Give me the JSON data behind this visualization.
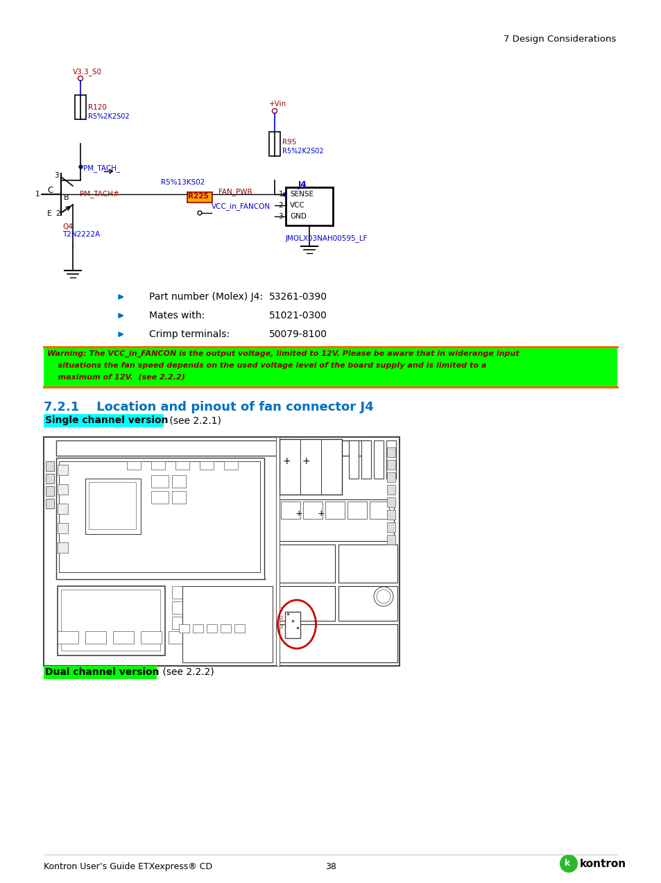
{
  "page_header": "7 Design Considerations",
  "section_title": "7.2.1    Location and pinout of fan connector J4",
  "section_title_color": "#0070C0",
  "single_channel_label": "Single channel version",
  "single_channel_highlight": "#00FFFF",
  "single_channel_suffix": " (see 2.2.1)",
  "dual_channel_label": "Dual channel version",
  "dual_channel_highlight": "#00FF00",
  "dual_channel_suffix": " (see 2.2.2)",
  "bullet_color": "#0070C0",
  "bullets": [
    {
      "label": "Part number (Molex) J4:",
      "value": "53261-0390"
    },
    {
      "label": "Mates with:",
      "value": "51021-0300"
    },
    {
      "label": "Crimp terminals:",
      "value": "50079-8100"
    }
  ],
  "warning_bg": "#00FF00",
  "warning_border": "#FF6600",
  "warning_text_color": "#8B0000",
  "footer_left": "Kontron User’s Guide ETXexpress® CD",
  "footer_page": "38",
  "background_color": "#ffffff",
  "schematic": {
    "v33_label": "V3.3_S0",
    "vin_label": "+Vin",
    "r120_label": "R120",
    "r120_val": "R5%2K2S02",
    "r95_label": "R95",
    "r95_val": "R5%2K2S02",
    "pm_tach_label": "PM_TACH_",
    "r5k13": "R5%13KS02",
    "pm_tach_hash": "PM_TACH#",
    "fan_pwr": "FAN_PWR",
    "r225": "R225",
    "vcc_fan": "VCC_in_FANCON",
    "j4_label": "J4",
    "sense": "SENSE",
    "vcc": "VCC",
    "gnd": "GND",
    "jmolx": "JMOLX03NAH00595_LF",
    "q4": "Q4",
    "t2n": "T2N2222A"
  }
}
